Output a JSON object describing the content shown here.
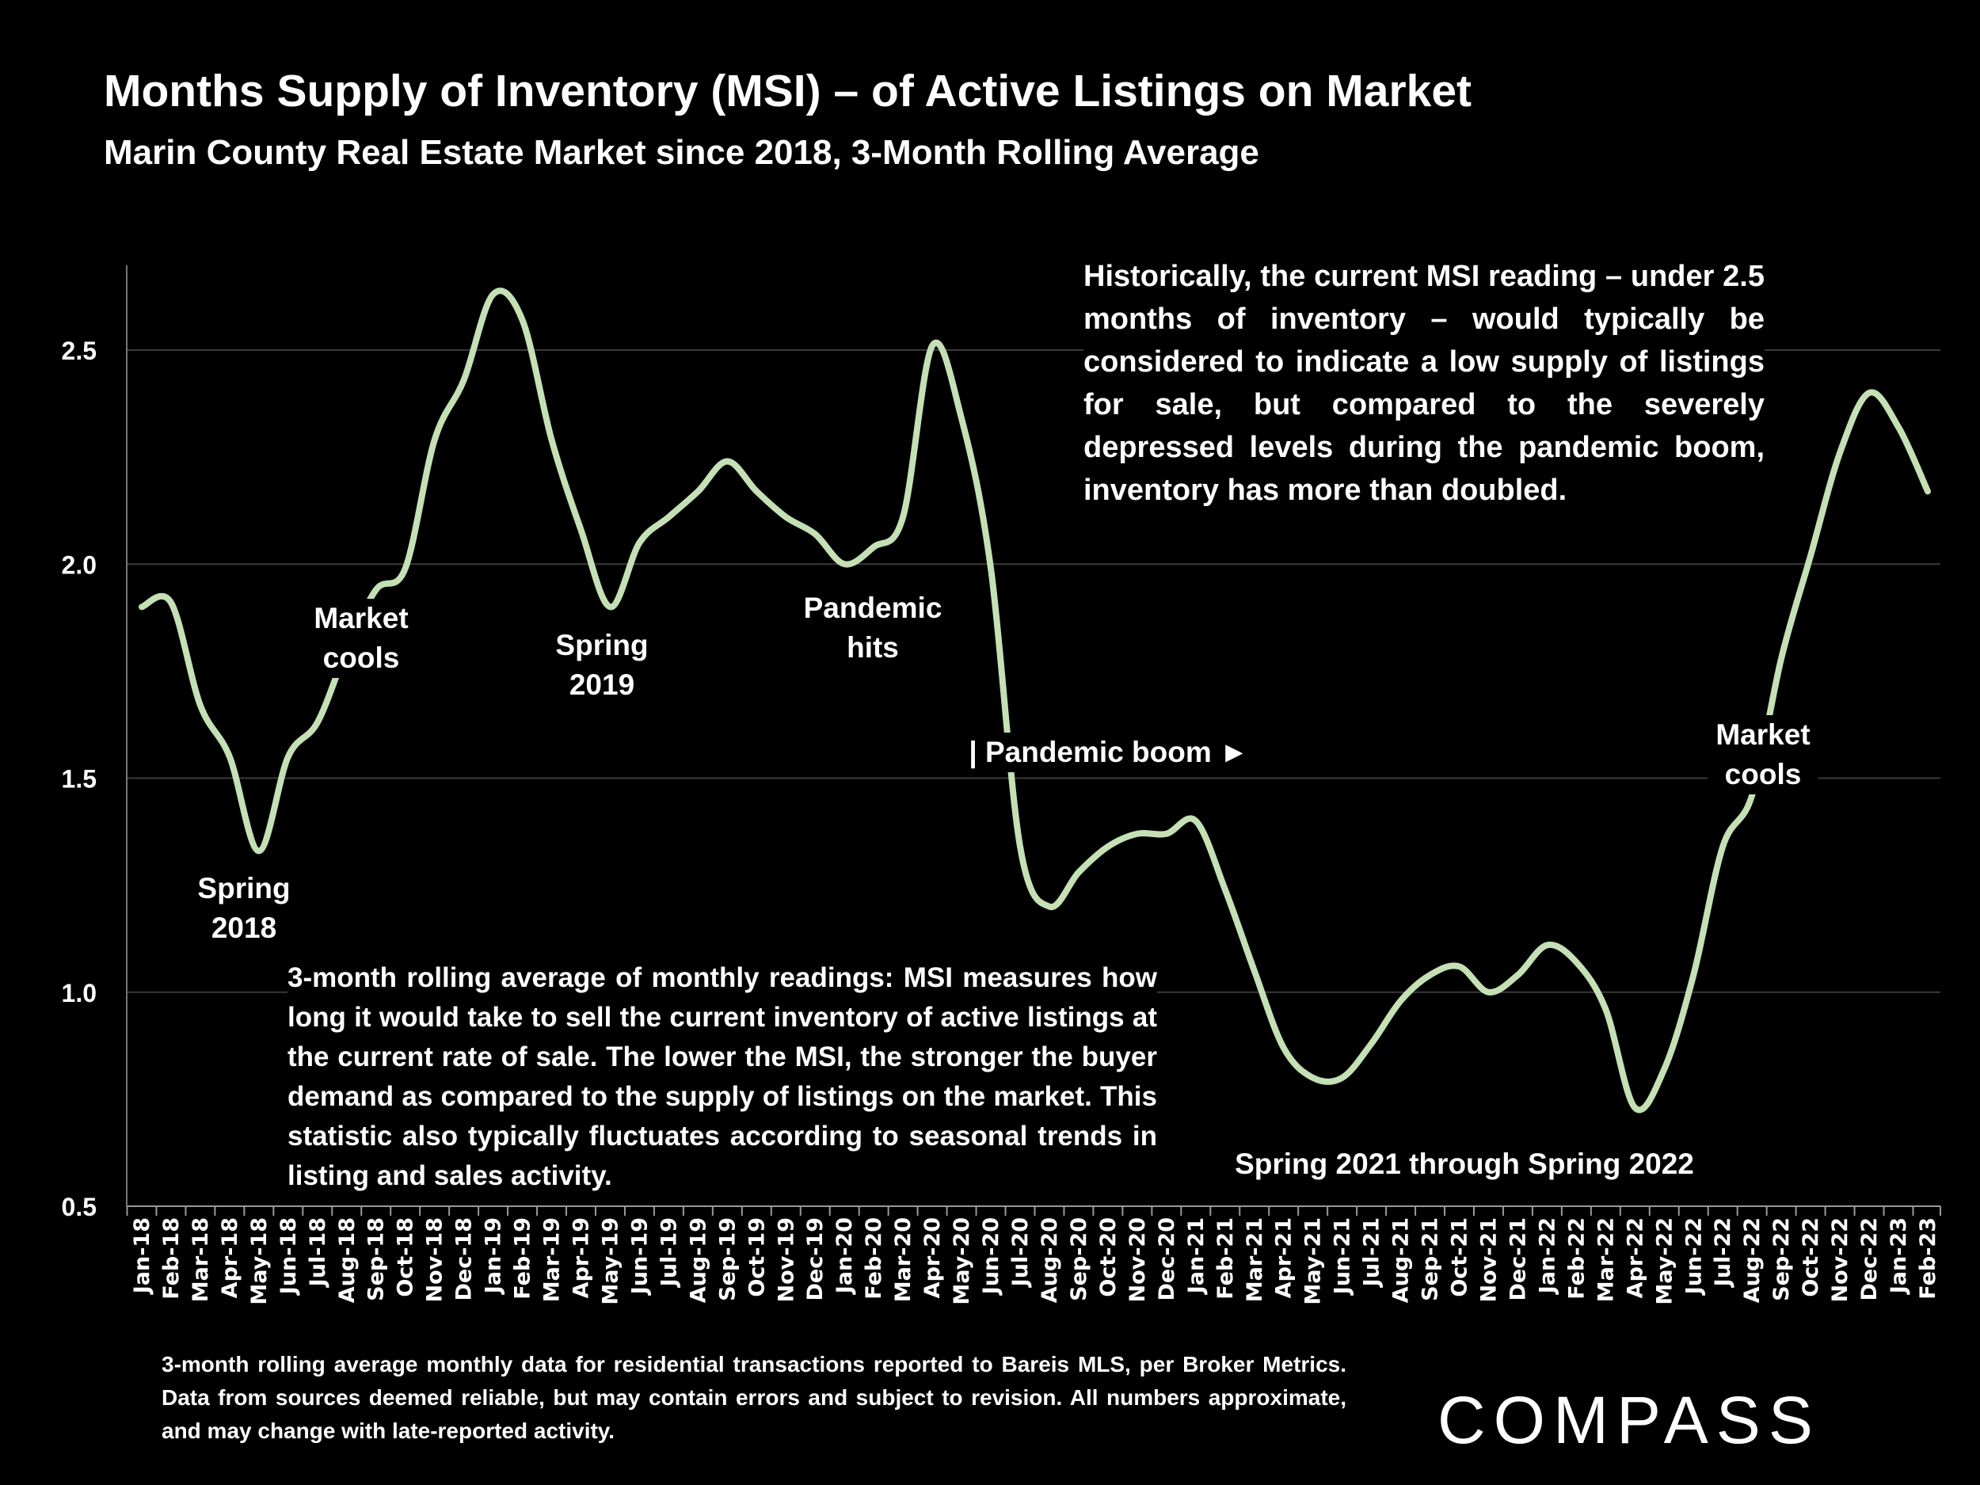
{
  "header": {
    "title": "Months Supply of Inventory (MSI) – of Active Listings on Market",
    "subtitle": "Marin County Real Estate Market since 2018, 3-Month Rolling Average"
  },
  "notes": {
    "right": "Historically, the current MSI reading – under 2.5 months of inventory – would typically be considered to indicate a low supply of listings for sale, but compared to the severely depressed levels during the pandemic boom, inventory has more than doubled.",
    "bottom": "3-month rolling average of monthly readings: MSI measures how long it would take to sell the current inventory of active listings at the current rate of sale. The lower the MSI, the stronger the buyer demand as compared to the supply of listings on the market. This statistic also typically fluctuates according to seasonal trends in listing and sales activity."
  },
  "footer": "3-month rolling average monthly data for residential transactions reported to Bareis MLS, per Broker Metrics. Data from sources deemed reliable, but may contain errors and subject to revision. All numbers approximate, and may change with late-reported activity.",
  "logo": "COMPASS",
  "chart_data": {
    "type": "line",
    "title": "Months Supply of Inventory (MSI) – of Active Listings on Market",
    "subtitle": "Marin County Real Estate Market since 2018, 3-Month Rolling Average",
    "xlabel": "",
    "ylabel": "",
    "ylim": [
      0.5,
      2.7
    ],
    "yticks": [
      "0.5",
      "1.0",
      "1.5",
      "2.0",
      "2.5"
    ],
    "grid": true,
    "line_color": "#c5e0b4",
    "categories": [
      "Jan-18",
      "Feb-18",
      "Mar-18",
      "Apr-18",
      "May-18",
      "Jun-18",
      "Jul-18",
      "Aug-18",
      "Sep-18",
      "Oct-18",
      "Nov-18",
      "Dec-18",
      "Jan-19",
      "Feb-19",
      "Mar-19",
      "Apr-19",
      "May-19",
      "Jun-19",
      "Jul-19",
      "Aug-19",
      "Sep-19",
      "Oct-19",
      "Nov-19",
      "Dec-19",
      "Jan-20",
      "Feb-20",
      "Mar-20",
      "Apr-20",
      "May-20",
      "Jun-20",
      "Jul-20",
      "Aug-20",
      "Sep-20",
      "Oct-20",
      "Nov-20",
      "Dec-20",
      "Jan-21",
      "Feb-21",
      "Mar-21",
      "Apr-21",
      "May-21",
      "Jun-21",
      "Jul-21",
      "Aug-21",
      "Sep-21",
      "Oct-21",
      "Nov-21",
      "Dec-21",
      "Jan-22",
      "Feb-22",
      "Mar-22",
      "Apr-22",
      "May-22",
      "Jun-22",
      "Jul-22",
      "Aug-22",
      "Sep-22",
      "Oct-22",
      "Nov-22",
      "Dec-22",
      "Jan-23",
      "Feb-23"
    ],
    "values": [
      1.9,
      1.91,
      1.67,
      1.55,
      1.33,
      1.55,
      1.63,
      1.8,
      1.94,
      1.99,
      2.29,
      2.43,
      2.63,
      2.57,
      2.29,
      2.08,
      1.9,
      2.05,
      2.11,
      2.17,
      2.24,
      2.17,
      2.11,
      2.07,
      2.0,
      2.04,
      2.11,
      2.51,
      2.34,
      1.99,
      1.34,
      1.2,
      1.28,
      1.34,
      1.37,
      1.37,
      1.4,
      1.24,
      1.05,
      0.87,
      0.8,
      0.8,
      0.88,
      0.98,
      1.04,
      1.06,
      1.0,
      1.04,
      1.11,
      1.07,
      0.96,
      0.73,
      0.82,
      1.04,
      1.34,
      1.46,
      1.78,
      2.02,
      2.26,
      2.4,
      2.32,
      2.17
    ],
    "annotations": [
      {
        "label": "Spring 2018",
        "lines": [
          "Spring",
          "2018"
        ],
        "at": "May-18"
      },
      {
        "label": "Market cools",
        "lines": [
          "Market",
          "cools"
        ],
        "at": "Aug-18"
      },
      {
        "label": "Spring 2019",
        "lines": [
          "Spring",
          "2019"
        ],
        "at": "May-19"
      },
      {
        "label": "Pandemic hits",
        "lines": [
          "Pandemic",
          "hits"
        ],
        "at": "Mar-20"
      },
      {
        "label": "| Pandemic boom ►",
        "lines": [
          "| Pandemic boom ►"
        ],
        "at": "Jul-20"
      },
      {
        "label": "Spring 2021 through Spring 2022",
        "lines": [
          "Spring 2021 through Spring 2022"
        ],
        "at": "Apr-21"
      },
      {
        "label": "Market cools",
        "lines": [
          "Market",
          "cools"
        ],
        "at": "Aug-22"
      }
    ]
  }
}
